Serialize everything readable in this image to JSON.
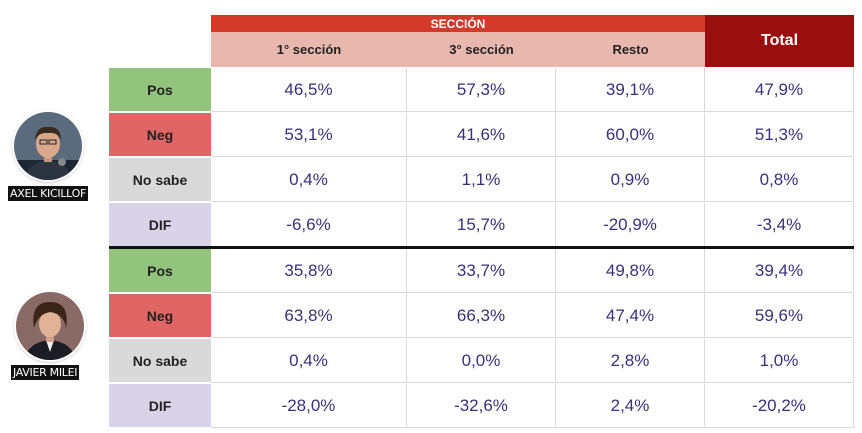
{
  "chart_data": {
    "type": "table",
    "header": {
      "group_label": "SECCIÓN",
      "columns": [
        "1° sección",
        "3° sección",
        "Resto"
      ],
      "total_label": "Total"
    },
    "blocks": [
      {
        "name": "AXEL KICILLOF",
        "rows": [
          {
            "label": "Pos",
            "values": [
              "46,5%",
              "57,3%",
              "39,1%",
              "47,9%"
            ]
          },
          {
            "label": "Neg",
            "values": [
              "53,1%",
              "41,6%",
              "60,0%",
              "51,3%"
            ]
          },
          {
            "label": "No sabe",
            "values": [
              "0,4%",
              "1,1%",
              "0,9%",
              "0,8%"
            ]
          },
          {
            "label": "DIF",
            "values": [
              "-6,6%",
              "15,7%",
              "-20,9%",
              "-3,4%"
            ]
          }
        ]
      },
      {
        "name": "JAVIER MILEI",
        "rows": [
          {
            "label": "Pos",
            "values": [
              "35,8%",
              "33,7%",
              "49,8%",
              "39,4%"
            ]
          },
          {
            "label": "Neg",
            "values": [
              "63,8%",
              "66,3%",
              "47,4%",
              "59,6%"
            ]
          },
          {
            "label": "No sabe",
            "values": [
              "0,4%",
              "0,0%",
              "2,8%",
              "1,0%"
            ]
          },
          {
            "label": "DIF",
            "values": [
              "-28,0%",
              "-32,6%",
              "2,4%",
              "-20,2%"
            ]
          }
        ]
      }
    ]
  },
  "colors": {
    "seccion_header": "#d23b2b",
    "subheader": "#e8b7ae",
    "total_header": "#9a0e0e",
    "pos": "#93c47d",
    "neg": "#e06666",
    "no_sabe": "#d9d9d9",
    "dif": "#d9d2e9",
    "value_text": "#3d2f7a"
  }
}
